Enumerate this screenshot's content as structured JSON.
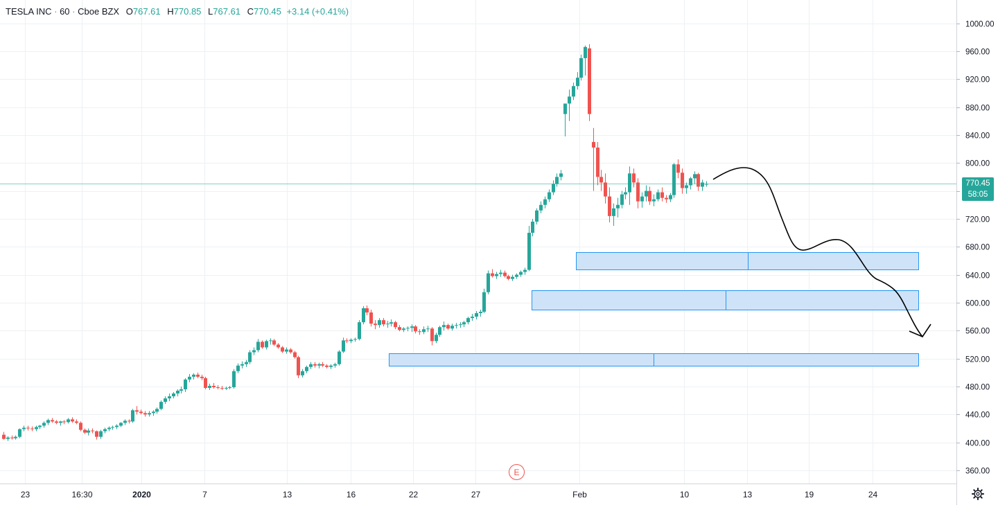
{
  "header": {
    "symbol": "TESLA INC",
    "interval": "60",
    "exchange": "Cboe BZX",
    "open_label": "O",
    "open": "767.61",
    "high_label": "H",
    "high": "770.85",
    "low_label": "L",
    "low": "767.61",
    "close_label": "C",
    "close": "770.45",
    "change": "+3.14 (+0.41%)"
  },
  "price_badge": {
    "price": "770.45",
    "countdown": "58:05"
  },
  "earnings_marker": "E",
  "settings_icon": "gear-icon",
  "colors": {
    "up": "#26a69a",
    "down": "#ef5350",
    "zone_fill": "#cfe3f8",
    "zone_stroke": "#2196f3",
    "grid": "#eef0f3",
    "axis": "#131722",
    "annotation": "#000000"
  },
  "chart_data": {
    "type": "candlestick",
    "title": "",
    "x_tick_labels": [
      "23",
      "16:30",
      "2020",
      "7",
      "13",
      "16",
      "22",
      "27",
      "Feb",
      "10",
      "13",
      "19",
      "24"
    ],
    "y_ticks": [
      "1000.00",
      "960.00",
      "920.00",
      "880.00",
      "840.00",
      "800.00",
      "760.00",
      "720.00",
      "680.00",
      "640.00",
      "600.00",
      "560.00",
      "520.00",
      "480.00",
      "440.00",
      "400.00",
      "360.00"
    ],
    "ylim": [
      340,
      1020
    ],
    "last_price": 770.45,
    "grid": true,
    "series": [
      {
        "kind": "ohlc",
        "values": [
          [
            411,
            415,
            404,
            405
          ],
          [
            405,
            409,
            402,
            407
          ],
          [
            407,
            410,
            404,
            406
          ],
          [
            406,
            410,
            404,
            408
          ],
          [
            408,
            420,
            406,
            419
          ],
          [
            419,
            424,
            416,
            421
          ],
          [
            421,
            424,
            417,
            420
          ],
          [
            420,
            423,
            416,
            419
          ],
          [
            419,
            424,
            416,
            422
          ],
          [
            422,
            425,
            419,
            424
          ],
          [
            424,
            430,
            421,
            428
          ],
          [
            428,
            434,
            425,
            432
          ],
          [
            432,
            435,
            428,
            430
          ],
          [
            430,
            432,
            426,
            428
          ],
          [
            428,
            431,
            424,
            430
          ],
          [
            430,
            432,
            426,
            429
          ],
          [
            429,
            435,
            427,
            433
          ],
          [
            433,
            436,
            428,
            430
          ],
          [
            430,
            433,
            426,
            428
          ],
          [
            428,
            430,
            416,
            418
          ],
          [
            418,
            420,
            412,
            414
          ],
          [
            414,
            420,
            410,
            417
          ],
          [
            417,
            420,
            413,
            416
          ],
          [
            416,
            417,
            404,
            408
          ],
          [
            408,
            418,
            405,
            416
          ],
          [
            416,
            421,
            413,
            419
          ],
          [
            419,
            423,
            416,
            421
          ],
          [
            421,
            424,
            418,
            422
          ],
          [
            422,
            426,
            419,
            424
          ],
          [
            424,
            429,
            422,
            428
          ],
          [
            428,
            433,
            425,
            431
          ],
          [
            431,
            433,
            427,
            430
          ],
          [
            430,
            448,
            428,
            446
          ],
          [
            446,
            452,
            440,
            444
          ],
          [
            444,
            447,
            440,
            442
          ],
          [
            442,
            445,
            437,
            440
          ],
          [
            440,
            445,
            437,
            442
          ],
          [
            442,
            446,
            438,
            444
          ],
          [
            444,
            450,
            441,
            448
          ],
          [
            448,
            460,
            446,
            458
          ],
          [
            458,
            466,
            455,
            463
          ],
          [
            463,
            470,
            459,
            466
          ],
          [
            466,
            472,
            463,
            470
          ],
          [
            470,
            476,
            466,
            474
          ],
          [
            474,
            480,
            470,
            476
          ],
          [
            476,
            492,
            472,
            490
          ],
          [
            490,
            498,
            486,
            494
          ],
          [
            494,
            499,
            490,
            497
          ],
          [
            497,
            500,
            492,
            494
          ],
          [
            494,
            497,
            489,
            492
          ],
          [
            492,
            494,
            476,
            478
          ],
          [
            478,
            484,
            475,
            481
          ],
          [
            481,
            485,
            477,
            479
          ],
          [
            479,
            482,
            476,
            478
          ],
          [
            478,
            481,
            475,
            477
          ],
          [
            477,
            480,
            475,
            478
          ],
          [
            478,
            481,
            476,
            479
          ],
          [
            479,
            505,
            477,
            502
          ],
          [
            502,
            513,
            499,
            510
          ],
          [
            510,
            516,
            506,
            512
          ],
          [
            512,
            518,
            508,
            515
          ],
          [
            515,
            532,
            512,
            529
          ],
          [
            529,
            536,
            525,
            532
          ],
          [
            532,
            548,
            529,
            544
          ],
          [
            544,
            546,
            534,
            536
          ],
          [
            536,
            547,
            533,
            545
          ],
          [
            545,
            549,
            540,
            546
          ],
          [
            546,
            548,
            538,
            540
          ],
          [
            540,
            542,
            534,
            536
          ],
          [
            536,
            538,
            528,
            530
          ],
          [
            530,
            536,
            527,
            533
          ],
          [
            533,
            535,
            527,
            529
          ],
          [
            529,
            531,
            520,
            522
          ],
          [
            522,
            524,
            492,
            496
          ],
          [
            496,
            505,
            493,
            502
          ],
          [
            502,
            510,
            499,
            508
          ],
          [
            508,
            515,
            505,
            512
          ],
          [
            512,
            515,
            507,
            510
          ],
          [
            510,
            514,
            506,
            512
          ],
          [
            512,
            515,
            508,
            510
          ],
          [
            510,
            512,
            506,
            508
          ],
          [
            508,
            512,
            505,
            510
          ],
          [
            510,
            514,
            507,
            512
          ],
          [
            512,
            532,
            510,
            530
          ],
          [
            530,
            550,
            528,
            546
          ],
          [
            546,
            549,
            542,
            545
          ],
          [
            545,
            549,
            542,
            547
          ],
          [
            547,
            550,
            544,
            548
          ],
          [
            548,
            575,
            546,
            572
          ],
          [
            572,
            595,
            569,
            592
          ],
          [
            592,
            596,
            582,
            586
          ],
          [
            586,
            590,
            566,
            570
          ],
          [
            570,
            575,
            562,
            568
          ],
          [
            568,
            578,
            564,
            575
          ],
          [
            575,
            578,
            566,
            569
          ],
          [
            569,
            574,
            564,
            570
          ],
          [
            570,
            576,
            566,
            572
          ],
          [
            572,
            574,
            562,
            565
          ],
          [
            565,
            568,
            559,
            561
          ],
          [
            561,
            565,
            558,
            563
          ],
          [
            563,
            566,
            559,
            564
          ],
          [
            564,
            569,
            558,
            566
          ],
          [
            566,
            568,
            556,
            559
          ],
          [
            559,
            562,
            554,
            558
          ],
          [
            558,
            566,
            555,
            562
          ],
          [
            562,
            567,
            558,
            563
          ],
          [
            563,
            565,
            539,
            545
          ],
          [
            545,
            557,
            542,
            554
          ],
          [
            554,
            567,
            551,
            565
          ],
          [
            565,
            573,
            560,
            568
          ],
          [
            568,
            570,
            561,
            563
          ],
          [
            563,
            570,
            560,
            567
          ],
          [
            567,
            571,
            563,
            568
          ],
          [
            568,
            572,
            564,
            569
          ],
          [
            569,
            574,
            565,
            572
          ],
          [
            572,
            580,
            569,
            578
          ],
          [
            578,
            584,
            574,
            580
          ],
          [
            580,
            588,
            576,
            585
          ],
          [
            585,
            590,
            580,
            587
          ],
          [
            587,
            620,
            585,
            615
          ],
          [
            615,
            646,
            612,
            642
          ],
          [
            642,
            648,
            636,
            638
          ],
          [
            638,
            644,
            634,
            641
          ],
          [
            641,
            647,
            637,
            643
          ],
          [
            643,
            646,
            636,
            638
          ],
          [
            638,
            640,
            632,
            634
          ],
          [
            634,
            640,
            631,
            637
          ],
          [
            637,
            642,
            634,
            640
          ],
          [
            640,
            646,
            637,
            644
          ],
          [
            644,
            650,
            640,
            647
          ],
          [
            647,
            710,
            645,
            700
          ],
          [
            700,
            720,
            695,
            716
          ],
          [
            716,
            735,
            712,
            732
          ],
          [
            732,
            745,
            728,
            740
          ],
          [
            740,
            752,
            735,
            748
          ],
          [
            748,
            762,
            744,
            758
          ],
          [
            758,
            775,
            754,
            770
          ],
          [
            770,
            785,
            766,
            780
          ],
          [
            780,
            790,
            775,
            785
          ],
          [
            870,
            878,
            838,
            885
          ],
          [
            885,
            905,
            860,
            895
          ],
          [
            895,
            915,
            890,
            910
          ],
          [
            910,
            930,
            905,
            922
          ],
          [
            922,
            955,
            918,
            950
          ],
          [
            950,
            968,
            925,
            966
          ],
          [
            964,
            970,
            860,
            870
          ],
          [
            830,
            850,
            760,
            822
          ],
          [
            822,
            830,
            768,
            780
          ],
          [
            780,
            790,
            760,
            772
          ],
          [
            772,
            785,
            742,
            752
          ],
          [
            752,
            765,
            715,
            724
          ],
          [
            724,
            742,
            710,
            735
          ],
          [
            735,
            750,
            722,
            740
          ],
          [
            740,
            760,
            735,
            755
          ],
          [
            755,
            765,
            748,
            758
          ],
          [
            758,
            795,
            740,
            785
          ],
          [
            785,
            792,
            765,
            772
          ],
          [
            772,
            778,
            735,
            745
          ],
          [
            745,
            758,
            736,
            752
          ],
          [
            752,
            768,
            745,
            760
          ],
          [
            760,
            766,
            740,
            745
          ],
          [
            745,
            755,
            738,
            748
          ],
          [
            748,
            762,
            745,
            758
          ],
          [
            758,
            765,
            745,
            750
          ],
          [
            750,
            754,
            743,
            748
          ],
          [
            748,
            757,
            744,
            754
          ],
          [
            754,
            800,
            750,
            798
          ],
          [
            798,
            805,
            778,
            786
          ],
          [
            786,
            792,
            756,
            764
          ],
          [
            764,
            772,
            756,
            768
          ],
          [
            768,
            780,
            762,
            778
          ],
          [
            778,
            788,
            770,
            784
          ],
          [
            784,
            786,
            760,
            766
          ],
          [
            766,
            776,
            760,
            772
          ],
          [
            770,
            774,
            766,
            770
          ]
        ]
      }
    ],
    "zones": [
      {
        "name": "",
        "top": 672,
        "bottom": 648
      },
      {
        "name": "",
        "top": 618,
        "bottom": 590
      },
      {
        "name": "",
        "top": 528,
        "bottom": 510
      }
    ],
    "annotation": "hand-drawn projected path"
  }
}
